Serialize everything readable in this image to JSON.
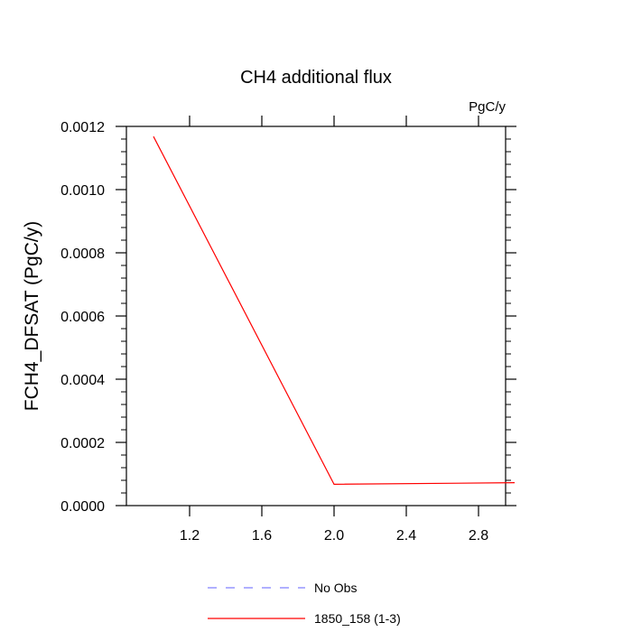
{
  "chart_data": {
    "type": "line",
    "title": "CH4 additional flux",
    "units": "PgC/y",
    "xlabel": "",
    "ylabel": "FCH4_DFSAT  (PgC/y)",
    "xlim": [
      0.85,
      2.95
    ],
    "ylim": [
      0.0,
      0.0012
    ],
    "x_ticks": [
      1.2,
      1.6,
      2.0,
      2.4,
      2.8
    ],
    "x_tick_labels": [
      "1.2",
      "1.6",
      "2.0",
      "2.4",
      "2.8"
    ],
    "y_ticks": [
      0.0,
      0.0002,
      0.0004,
      0.0006,
      0.0008,
      0.001,
      0.0012
    ],
    "y_tick_labels": [
      "0.0000",
      "0.0002",
      "0.0004",
      "0.0006",
      "0.0008",
      "0.0010",
      "0.0012"
    ],
    "series": [
      {
        "name": "No Obs",
        "color": "#8080ff",
        "dash": "dashed",
        "x": [],
        "y": []
      },
      {
        "name": "1850_158 (1-3)",
        "color": "#ff0000",
        "dash": "solid",
        "x": [
          1.0,
          2.0,
          3.0
        ],
        "y": [
          0.001168,
          6.75e-05,
          7.25e-05
        ]
      }
    ],
    "legend": "bottom-center",
    "grid": false
  }
}
